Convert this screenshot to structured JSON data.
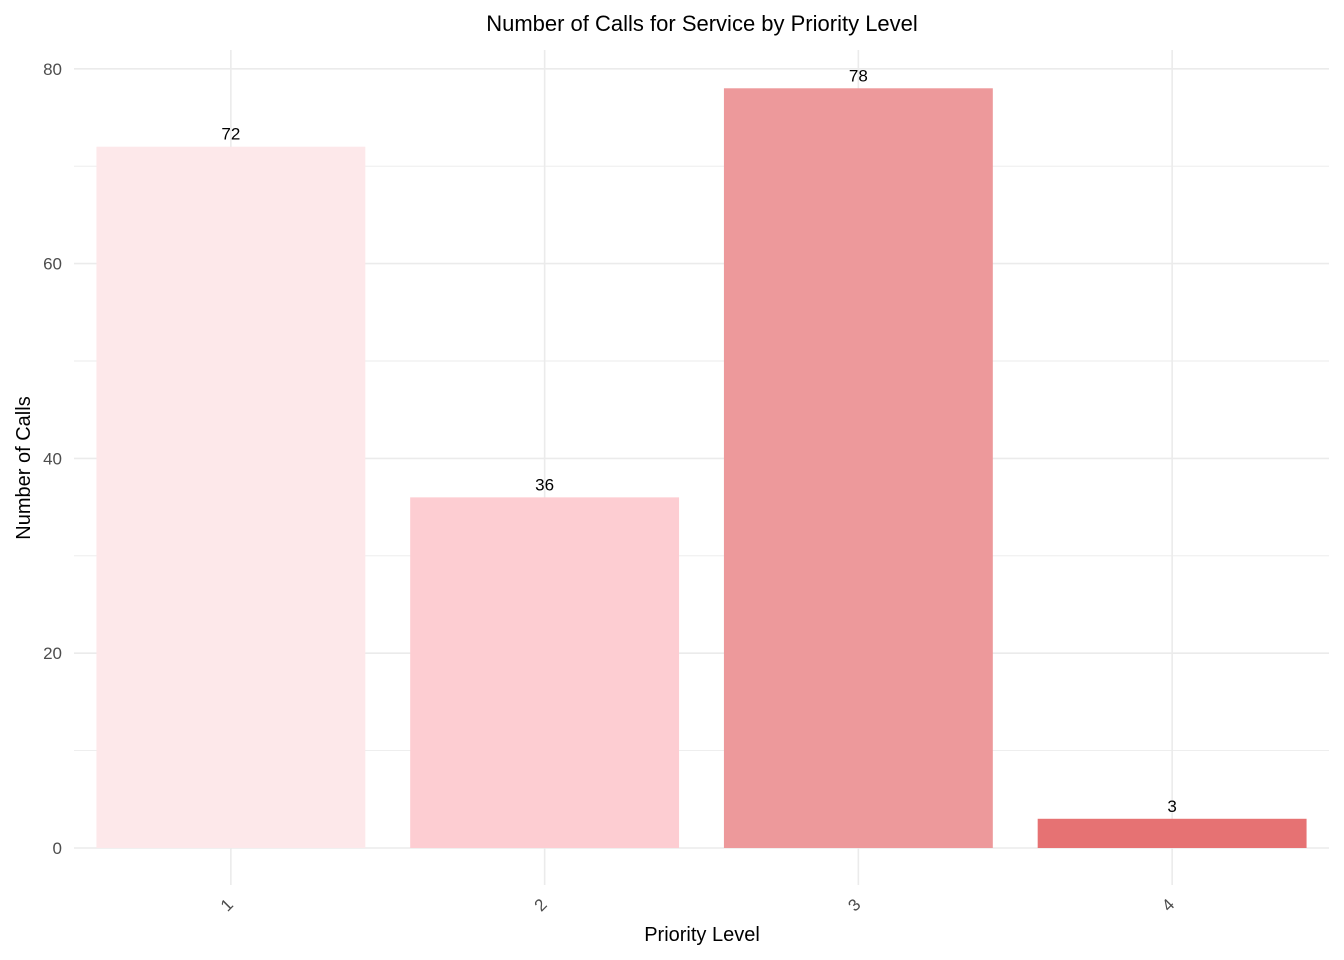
{
  "chart_data": {
    "type": "bar",
    "title": "Number of Calls for Service by Priority Level",
    "xlabel": "Priority Level",
    "ylabel": "Number of Calls",
    "categories": [
      "1",
      "2",
      "3",
      "4"
    ],
    "values": [
      72,
      36,
      78,
      3
    ],
    "bar_colors": [
      "#fde8ea",
      "#fdcdd2",
      "#ed999b",
      "#e67273"
    ],
    "ylim": [
      0,
      82
    ],
    "yticks": [
      0,
      20,
      40,
      60,
      80
    ],
    "grid": true,
    "legend": "none"
  }
}
